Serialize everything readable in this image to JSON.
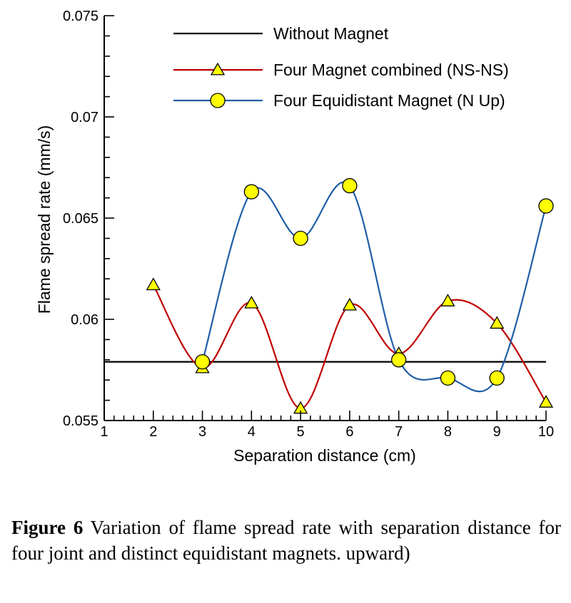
{
  "chart_data": {
    "type": "line",
    "xlabel": "Separation distance (cm)",
    "ylabel": "Flame spread rate (mm/s)",
    "xlim": [
      1,
      10
    ],
    "ylim": [
      0.055,
      0.075
    ],
    "x_ticks": [
      "1",
      "2",
      "3",
      "4",
      "5",
      "6",
      "7",
      "8",
      "9",
      "10"
    ],
    "y_ticks": [
      "0.055",
      "0.06",
      "0.065",
      "0.07",
      "0.075"
    ],
    "grid": false,
    "legend_position": "top-right",
    "series": [
      {
        "name": "Without Magnet",
        "color": "#000000",
        "marker": "none",
        "x": [
          1,
          10
        ],
        "y": [
          0.0579,
          0.0579
        ]
      },
      {
        "name": "Four Magnet combined (NS-NS)",
        "color": "#c00000",
        "marker": "triangle",
        "x": [
          2,
          3,
          4,
          5,
          6,
          7,
          8,
          9,
          10
        ],
        "y": [
          0.0617,
          0.0576,
          0.0608,
          0.0556,
          0.0607,
          0.0583,
          0.0609,
          0.0598,
          0.0559
        ]
      },
      {
        "name": "Four Equidistant Magnet (N Up)",
        "color": "#1f5fa8",
        "marker": "circle",
        "x": [
          3,
          4,
          5,
          6,
          7,
          8,
          9,
          10
        ],
        "y": [
          0.0579,
          0.0663,
          0.064,
          0.0666,
          0.058,
          0.0571,
          0.0571,
          0.0656
        ]
      }
    ]
  },
  "caption": {
    "label": "Figure 6",
    "text": " Variation of flame spread rate with separation distance for four joint and distinct equidistant magnets. upward)"
  },
  "colors": {
    "marker_fill": "#ffff00",
    "marker_stroke": "#000000"
  }
}
